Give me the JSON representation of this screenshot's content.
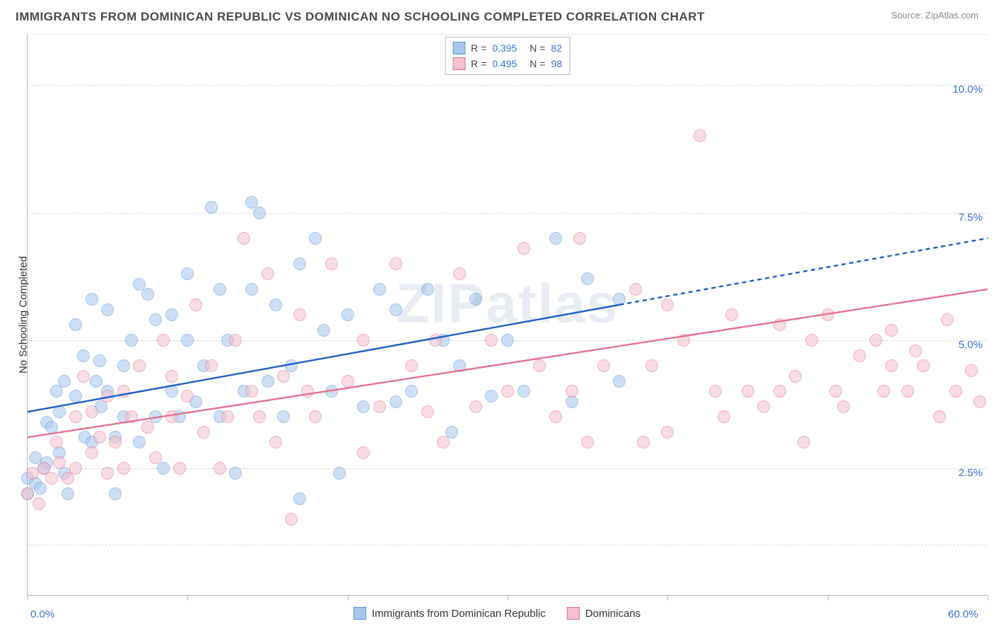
{
  "title": "IMMIGRANTS FROM DOMINICAN REPUBLIC VS DOMINICAN NO SCHOOLING COMPLETED CORRELATION CHART",
  "source": "Source: ZipAtlas.com",
  "watermark": "ZIPatlas",
  "ylabel": "No Schooling Completed",
  "chart": {
    "type": "scatter",
    "xlim": [
      0,
      60
    ],
    "ylim": [
      0,
      11
    ],
    "xtick_positions": [
      0,
      10,
      20,
      30,
      40,
      50,
      60
    ],
    "xtick_labels_shown": {
      "0": "0.0%",
      "60": "60.0%"
    },
    "ytick_positions": [
      2.5,
      5.0,
      7.5,
      10.0
    ],
    "ytick_labels": [
      "2.5%",
      "5.0%",
      "7.5%",
      "10.0%"
    ],
    "grid_y_positions": [
      1.0,
      2.5,
      5.0,
      7.5,
      10.0,
      11.0
    ],
    "background_color": "#ffffff",
    "grid_color": "#d8d8d8",
    "axis_color": "#bbbbbb",
    "tick_label_color": "#3b6fd6",
    "marker_radius": 9,
    "marker_opacity": 0.55,
    "series": [
      {
        "name": "Immigrants from Dominican Republic",
        "color_fill": "#a7c6ed",
        "color_stroke": "#5f93d8",
        "R": "0.395",
        "N": "82",
        "trend": {
          "x1": 0,
          "y1": 3.6,
          "x2": 60,
          "y2": 7.0,
          "solid_until_x": 37,
          "stroke": "#1f5fc4",
          "width": 2.4
        },
        "points": [
          [
            0,
            2.0
          ],
          [
            0,
            2.3
          ],
          [
            0.5,
            2.2
          ],
          [
            0.5,
            2.7
          ],
          [
            0.8,
            2.1
          ],
          [
            1,
            2.5
          ],
          [
            1.2,
            3.4
          ],
          [
            1.2,
            2.6
          ],
          [
            1.5,
            3.3
          ],
          [
            1.8,
            4.0
          ],
          [
            2,
            2.8
          ],
          [
            2,
            3.6
          ],
          [
            2.3,
            2.4
          ],
          [
            2.3,
            4.2
          ],
          [
            2.5,
            2.0
          ],
          [
            3,
            5.3
          ],
          [
            3,
            3.9
          ],
          [
            3.5,
            4.7
          ],
          [
            3.6,
            3.1
          ],
          [
            4,
            5.8
          ],
          [
            4,
            3.0
          ],
          [
            4.3,
            4.2
          ],
          [
            4.5,
            4.6
          ],
          [
            4.6,
            3.7
          ],
          [
            5,
            5.6
          ],
          [
            5,
            4.0
          ],
          [
            5.5,
            2.0
          ],
          [
            5.5,
            3.1
          ],
          [
            6,
            4.5
          ],
          [
            6,
            3.5
          ],
          [
            6.5,
            5.0
          ],
          [
            7,
            6.1
          ],
          [
            7,
            3.0
          ],
          [
            7.5,
            5.9
          ],
          [
            8,
            5.4
          ],
          [
            8,
            3.5
          ],
          [
            8.5,
            2.5
          ],
          [
            9,
            5.5
          ],
          [
            9,
            4.0
          ],
          [
            9.5,
            3.5
          ],
          [
            10,
            6.3
          ],
          [
            10,
            5.0
          ],
          [
            10.5,
            3.8
          ],
          [
            11,
            4.5
          ],
          [
            11.5,
            7.6
          ],
          [
            12,
            6.0
          ],
          [
            12,
            3.5
          ],
          [
            12.5,
            5.0
          ],
          [
            13,
            2.4
          ],
          [
            13.5,
            4.0
          ],
          [
            14,
            7.7
          ],
          [
            14,
            6.0
          ],
          [
            14.5,
            7.5
          ],
          [
            15,
            4.2
          ],
          [
            15.5,
            5.7
          ],
          [
            16,
            3.5
          ],
          [
            16.5,
            4.5
          ],
          [
            17,
            6.5
          ],
          [
            17,
            1.9
          ],
          [
            18,
            7.0
          ],
          [
            18.5,
            5.2
          ],
          [
            19,
            4.0
          ],
          [
            19.5,
            2.4
          ],
          [
            20,
            5.5
          ],
          [
            21,
            3.7
          ],
          [
            22,
            6.0
          ],
          [
            23,
            5.6
          ],
          [
            23,
            3.8
          ],
          [
            24,
            4.0
          ],
          [
            25,
            6.0
          ],
          [
            26,
            5.0
          ],
          [
            26.5,
            3.2
          ],
          [
            27,
            4.5
          ],
          [
            28,
            5.8
          ],
          [
            29,
            3.9
          ],
          [
            30,
            5.0
          ],
          [
            31,
            4.0
          ],
          [
            33,
            7.0
          ],
          [
            34,
            3.8
          ],
          [
            35,
            6.2
          ],
          [
            37,
            5.8
          ],
          [
            37,
            4.2
          ]
        ]
      },
      {
        "name": "Dominicans",
        "color_fill": "#f4c1cf",
        "color_stroke": "#e3728f",
        "R": "0.495",
        "N": "98",
        "trend": {
          "x1": 0,
          "y1": 3.1,
          "x2": 60,
          "y2": 6.0,
          "solid_until_x": 60,
          "stroke": "#e3728f",
          "width": 2.4
        },
        "points": [
          [
            0,
            2.0
          ],
          [
            0.3,
            2.4
          ],
          [
            0.7,
            1.8
          ],
          [
            1,
            2.5
          ],
          [
            1.5,
            2.3
          ],
          [
            1.8,
            3.0
          ],
          [
            2,
            2.6
          ],
          [
            2.5,
            2.3
          ],
          [
            3,
            3.5
          ],
          [
            3,
            2.5
          ],
          [
            3.5,
            4.3
          ],
          [
            4,
            3.6
          ],
          [
            4,
            2.8
          ],
          [
            4.5,
            3.1
          ],
          [
            5,
            3.9
          ],
          [
            5,
            2.4
          ],
          [
            5.5,
            3.0
          ],
          [
            6,
            4.0
          ],
          [
            6,
            2.5
          ],
          [
            6.5,
            3.5
          ],
          [
            7,
            4.5
          ],
          [
            7.5,
            3.3
          ],
          [
            8,
            2.7
          ],
          [
            8.5,
            5.0
          ],
          [
            9,
            3.5
          ],
          [
            9,
            4.3
          ],
          [
            9.5,
            2.5
          ],
          [
            10,
            3.9
          ],
          [
            10.5,
            5.7
          ],
          [
            11,
            3.2
          ],
          [
            11.5,
            4.5
          ],
          [
            12,
            2.5
          ],
          [
            12.5,
            3.5
          ],
          [
            13,
            5.0
          ],
          [
            13.5,
            7.0
          ],
          [
            14,
            4.0
          ],
          [
            14.5,
            3.5
          ],
          [
            15,
            6.3
          ],
          [
            15.5,
            3.0
          ],
          [
            16,
            4.3
          ],
          [
            16.5,
            1.5
          ],
          [
            17,
            5.5
          ],
          [
            17.5,
            4.0
          ],
          [
            18,
            3.5
          ],
          [
            19,
            6.5
          ],
          [
            20,
            4.2
          ],
          [
            21,
            5.0
          ],
          [
            21,
            2.8
          ],
          [
            22,
            3.7
          ],
          [
            23,
            6.5
          ],
          [
            24,
            4.5
          ],
          [
            25,
            3.6
          ],
          [
            25.5,
            5.0
          ],
          [
            26,
            3.0
          ],
          [
            27,
            6.3
          ],
          [
            28,
            3.7
          ],
          [
            29,
            5.0
          ],
          [
            30,
            4.0
          ],
          [
            31,
            6.8
          ],
          [
            32,
            4.5
          ],
          [
            33,
            3.5
          ],
          [
            34,
            4.0
          ],
          [
            34.5,
            7.0
          ],
          [
            35,
            3.0
          ],
          [
            36,
            4.5
          ],
          [
            38,
            6.0
          ],
          [
            38.5,
            3.0
          ],
          [
            39,
            4.5
          ],
          [
            40,
            5.7
          ],
          [
            40,
            3.2
          ],
          [
            41,
            5.0
          ],
          [
            42,
            9.0
          ],
          [
            43,
            4.0
          ],
          [
            43.5,
            3.5
          ],
          [
            44,
            5.5
          ],
          [
            45,
            4.0
          ],
          [
            46,
            3.7
          ],
          [
            47,
            5.3
          ],
          [
            47,
            4.0
          ],
          [
            48,
            4.3
          ],
          [
            48.5,
            3.0
          ],
          [
            49,
            5.0
          ],
          [
            50,
            5.5
          ],
          [
            50.5,
            4.0
          ],
          [
            51,
            3.7
          ],
          [
            52,
            4.7
          ],
          [
            53,
            5.0
          ],
          [
            53.5,
            4.0
          ],
          [
            54,
            4.5
          ],
          [
            54,
            5.2
          ],
          [
            55,
            4.0
          ],
          [
            55.5,
            4.8
          ],
          [
            56,
            4.5
          ],
          [
            57,
            3.5
          ],
          [
            57.5,
            5.4
          ],
          [
            58,
            4.0
          ],
          [
            59,
            4.4
          ],
          [
            59.5,
            3.8
          ]
        ]
      }
    ]
  },
  "legend_bottom": [
    {
      "label": "Immigrants from Dominican Republic",
      "fill": "#a7c6ed",
      "stroke": "#5f93d8"
    },
    {
      "label": "Dominicans",
      "fill": "#f4c1cf",
      "stroke": "#e3728f"
    }
  ]
}
